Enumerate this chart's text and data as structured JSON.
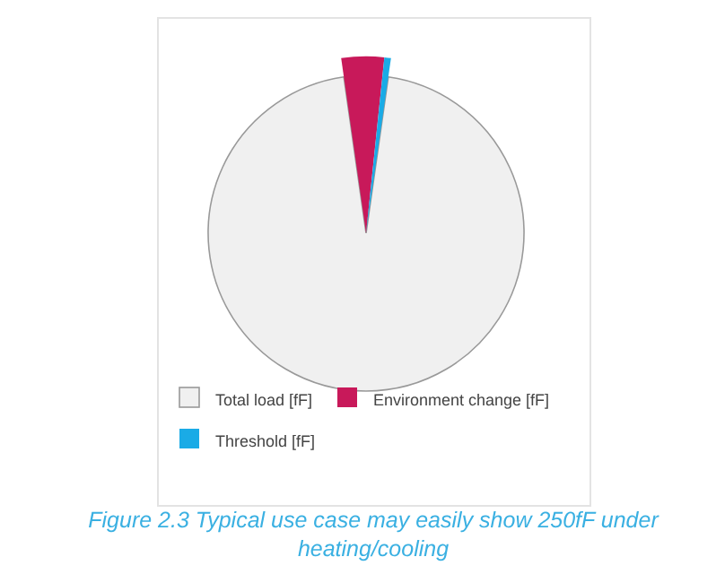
{
  "chart_data": {
    "type": "pie",
    "categories": [
      "Total load [fF]",
      "Environment change [fF]",
      "Threshold [fF]"
    ],
    "values": [
      95.5,
      3.9,
      0.6
    ],
    "colors": [
      "#f0f0f0",
      "#c8195a",
      "#1aabe6"
    ],
    "legend": "bottom",
    "annotations": [
      "Figure 2.3 Typical use case may easily show 250fF under heating/cooling"
    ]
  }
}
